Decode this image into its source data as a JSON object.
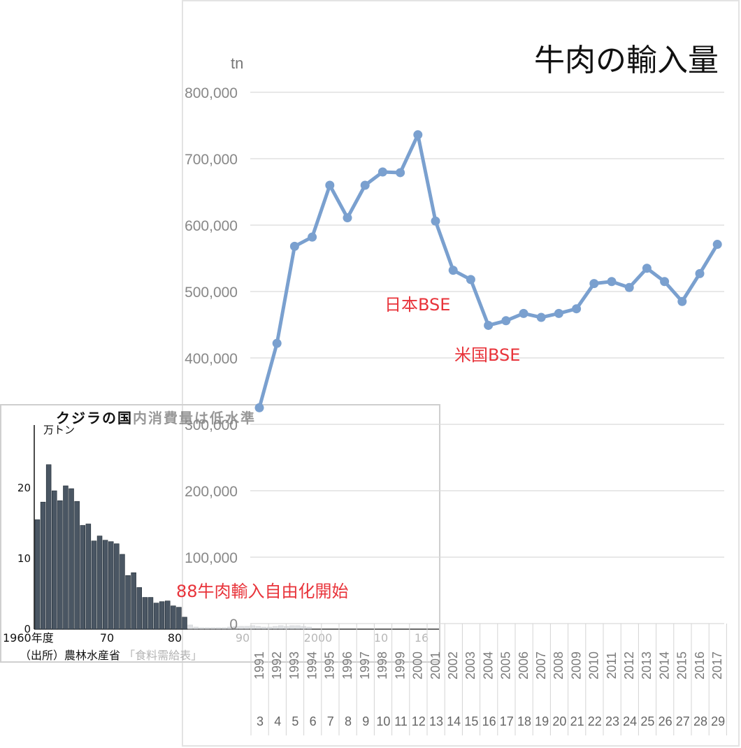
{
  "chart_data": [
    {
      "type": "line",
      "title": "牛肉の輸入量",
      "ylabel": "tn",
      "ylim": [
        0,
        800000
      ],
      "yticks": [
        "0",
        "100,000",
        "200,000",
        "300,000",
        "400,000",
        "500,000",
        "600,000",
        "700,000",
        "800,000"
      ],
      "categories": [
        "1991",
        "1992",
        "1993",
        "1994",
        "1995",
        "1996",
        "1997",
        "1998",
        "1999",
        "2000",
        "2001",
        "2002",
        "2003",
        "2004",
        "2005",
        "2006",
        "2007",
        "2008",
        "2009",
        "2010",
        "2011",
        "2012",
        "2013",
        "2014",
        "2015",
        "2016",
        "2017"
      ],
      "categories_sub": [
        "3",
        "4",
        "5",
        "6",
        "7",
        "8",
        "9",
        "10",
        "11",
        "12",
        "13",
        "14",
        "15",
        "16",
        "17",
        "18",
        "19",
        "20",
        "21",
        "22",
        "23",
        "24",
        "25",
        "26",
        "27",
        "28",
        "29"
      ],
      "values": [
        325000,
        422000,
        568000,
        582000,
        660000,
        611000,
        660000,
        680000,
        679000,
        736000,
        606000,
        532000,
        518000,
        449000,
        456000,
        467000,
        461000,
        467000,
        474000,
        512000,
        515000,
        506000,
        535000,
        515000,
        485000,
        527000,
        571000
      ],
      "grid": true,
      "line_color": "#7aa0cf",
      "annotations": [
        "日本BSE",
        "米国BSE",
        "88牛肉輸入自由化開始"
      ],
      "annotation_color": "#e8333a"
    },
    {
      "type": "bar",
      "title": "クジラの国内消費量は低水準",
      "ylabel": "万トン",
      "ylim": [
        0,
        25
      ],
      "yticks": [
        "0",
        "10",
        "20"
      ],
      "xticks": [
        "1960年度",
        "70",
        "80",
        "90",
        "2000",
        "10",
        "16"
      ],
      "values": [
        15.5,
        18,
        23.3,
        19.6,
        18.2,
        20.3,
        19.9,
        18.1,
        14.7,
        14.9,
        12.5,
        13.2,
        12.6,
        12.4,
        12.1,
        10.6,
        7.6,
        8.0,
        5.9,
        4.5,
        4.5,
        3.7,
        3.9,
        4.0,
        3.3,
        3.1,
        1.7,
        0.6,
        0.3,
        0.2,
        0.2,
        0.2,
        0.2,
        0.2,
        0.3,
        0.4,
        0.4,
        0.4,
        0.5,
        0.4,
        0.3,
        0.3,
        0.4,
        0.5,
        0.4,
        0.5,
        0.5,
        0.4,
        0.3
      ],
      "bar_color": "#4a5663",
      "source": "（出所）農林水産省「食料需給表」"
    }
  ],
  "annotations": {
    "japan_bse": "日本BSE",
    "us_bse": "米国BSE",
    "liberalization": "88牛肉輸入自由化開始"
  },
  "inset": {
    "title_a": "クジラの国",
    "title_b": "内消費量は低水準",
    "unit": "万トン",
    "source_a": "（出所）農林水産省",
    "source_b": "「食料需給表」"
  }
}
